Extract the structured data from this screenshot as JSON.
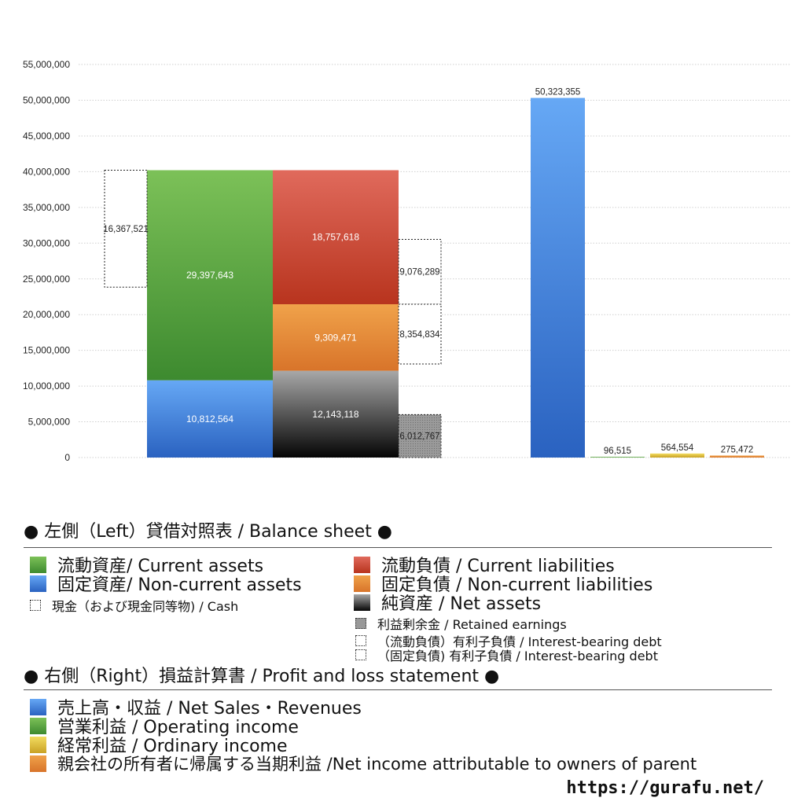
{
  "chart_data": {
    "type": "bar",
    "ylim": [
      0,
      55000000
    ],
    "yticks": [
      "0",
      "5,000,000",
      "10,000,000",
      "15,000,000",
      "20,000,000",
      "25,000,000",
      "30,000,000",
      "35,000,000",
      "40,000,000",
      "45,000,000",
      "50,000,000",
      "55,000,000"
    ],
    "grid": true,
    "balance_sheet": {
      "left_assets": [
        {
          "name": "固定資産/ Non-current assets",
          "value": 10812564,
          "label": "10,812,564",
          "color": "#3a7bd5"
        },
        {
          "name": "流動資産/ Current assets",
          "value": 29397643,
          "label": "29,397,643",
          "color": "#4e9a3c"
        }
      ],
      "right_liabilities": [
        {
          "name": "純資産 / Net assets",
          "value": 12143118,
          "label": "12,143,118",
          "color": "#333333"
        },
        {
          "name": "固定負債 / Non-current liabilities",
          "value": 9309471,
          "label": "9,309,471",
          "color": "#e0782a"
        },
        {
          "name": "流動負債 /  Current liabilities",
          "value": 18757618,
          "label": "18,757,618",
          "color": "#c8402c"
        }
      ],
      "cash": {
        "value": 16367521,
        "label": "16,367,521"
      },
      "retained_earnings": {
        "value": 6012767,
        "label": "6,012,767"
      },
      "current_interest_bearing_debt": {
        "value": 9076289,
        "label": "9,076,289"
      },
      "noncurrent_interest_bearing_debt": {
        "value": 8354834,
        "label": "8,354,834"
      }
    },
    "profit_and_loss": [
      {
        "name": "売上高・収益 / Net Sales・Revenues",
        "value": 50323355,
        "label": "50,323,355",
        "color": "#3a7bd5"
      },
      {
        "name": "営業利益 / Operating income",
        "value": 96515,
        "label": "96,515",
        "color": "#4e9a3c"
      },
      {
        "name": "経常利益 / Ordinary income",
        "value": 564554,
        "label": "564,554",
        "color": "#d4b02a"
      },
      {
        "name": "親会社の所有者に帰属する当期利益 /Net income attributable to owners of parent",
        "value": 275472,
        "label": "275,472",
        "color": "#e0782a"
      }
    ]
  },
  "legend": {
    "left_title": "● 左側（Left）貸借対照表 / Balance sheet ●",
    "right_title": "● 右側（Right）損益計算書 / Profit and loss statement ●",
    "current_assets": "流動資産/ Current assets",
    "noncurrent_assets": "固定資産/ Non-current assets",
    "cash": "現金（および現金同等物) / Cash",
    "current_liabilities": "流動負債 /  Current liabilities",
    "noncurrent_liabilities": "固定負債 / Non-current liabilities",
    "net_assets": "純資産 / Net assets",
    "retained_earnings": "利益剰余金 / Retained earnings",
    "current_ib_debt": "（流動負債）有利子負債 / Interest-bearing debt",
    "noncurrent_ib_debt": "（固定負債) 有利子負債 / Interest-bearing debt",
    "net_sales": "売上高・収益 / Net Sales・Revenues",
    "operating_income": "営業利益 / Operating income",
    "ordinary_income": "経常利益 / Ordinary income",
    "net_income": "親会社の所有者に帰属する当期利益 /Net income attributable to owners of parent"
  },
  "colors": {
    "current_assets": "#4e9a3c",
    "noncurrent_assets": "#3a7bd5",
    "current_liabilities": "#c8402c",
    "noncurrent_liabilities": "#e0782a",
    "net_assets": "#333333",
    "retained_earnings": "#999999",
    "net_sales": "#3a7bd5",
    "operating_income": "#4e9a3c",
    "ordinary_income": "#d4b02a",
    "net_income": "#e0782a"
  },
  "url": "https://gurafu.net/"
}
